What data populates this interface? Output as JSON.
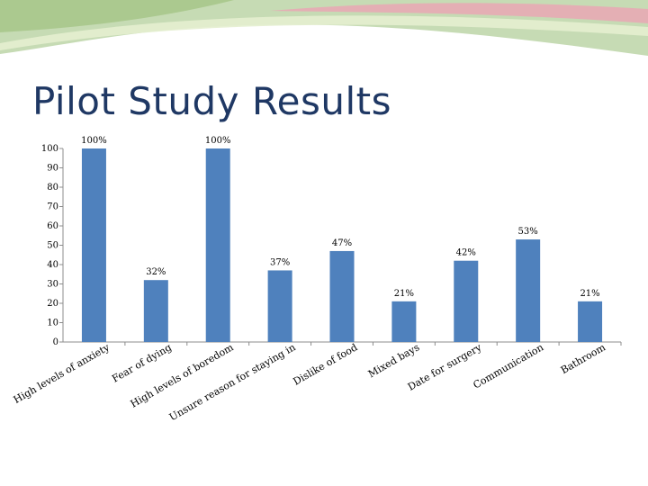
{
  "slide": {
    "title": "Pilot Study Results",
    "colors": {
      "header_green": "#c6dbb4",
      "header_green_dark": "#9fc27f",
      "header_pink": "#e9a7b4",
      "header_accent": "#e4eecf",
      "title": "#1f3864"
    }
  },
  "chart_data": {
    "type": "bar",
    "title": "",
    "xlabel": "",
    "ylabel": "",
    "ylim": [
      0,
      100
    ],
    "yticks": [
      0,
      10,
      20,
      30,
      40,
      50,
      60,
      70,
      80,
      90,
      100
    ],
    "grid": false,
    "legend": "none",
    "bar_color": "#4f81bd",
    "categories": [
      "High levels of anxiety",
      "Fear of dying",
      "High levels of boredom",
      "Unsure reason for staying in",
      "Dislike of food",
      "Mixed bays",
      "Date for surgery",
      "Communication",
      "Bathroom"
    ],
    "values": [
      100,
      32,
      100,
      37,
      47,
      21,
      42,
      53,
      21
    ],
    "value_labels": [
      "100%",
      "32%",
      "100%",
      "37%",
      "47%",
      "21%",
      "42%",
      "53%",
      "21%"
    ]
  }
}
